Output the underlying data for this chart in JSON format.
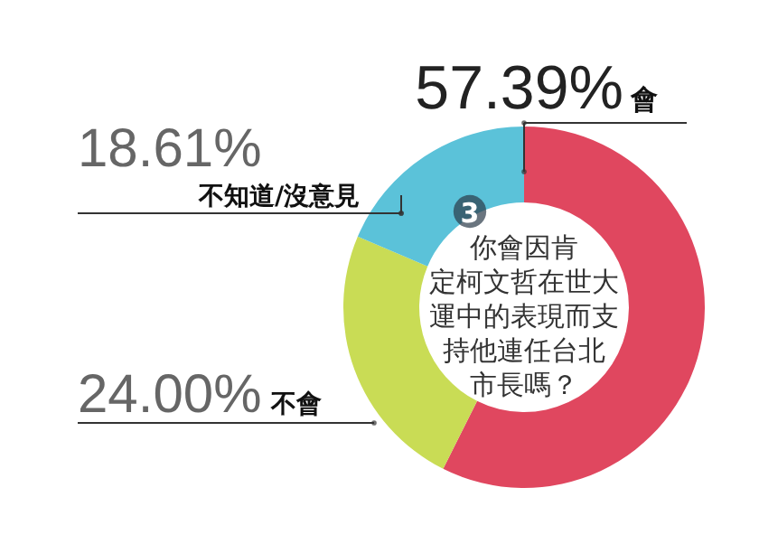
{
  "chart_data": {
    "type": "donut",
    "title": "你會因肯定柯文哲在世大運中的表現而支持他連任台北市長嗎？",
    "categories": [
      "會",
      "不會",
      "不知道/沒意見"
    ],
    "values": [
      57.39,
      24.0,
      18.61
    ],
    "colors": [
      "#e0475f",
      "#c9dc55",
      "#5bc2d9"
    ],
    "value_labels": [
      "57.39%",
      "24.00%",
      "18.61%"
    ],
    "annotations": [
      "3"
    ]
  }
}
